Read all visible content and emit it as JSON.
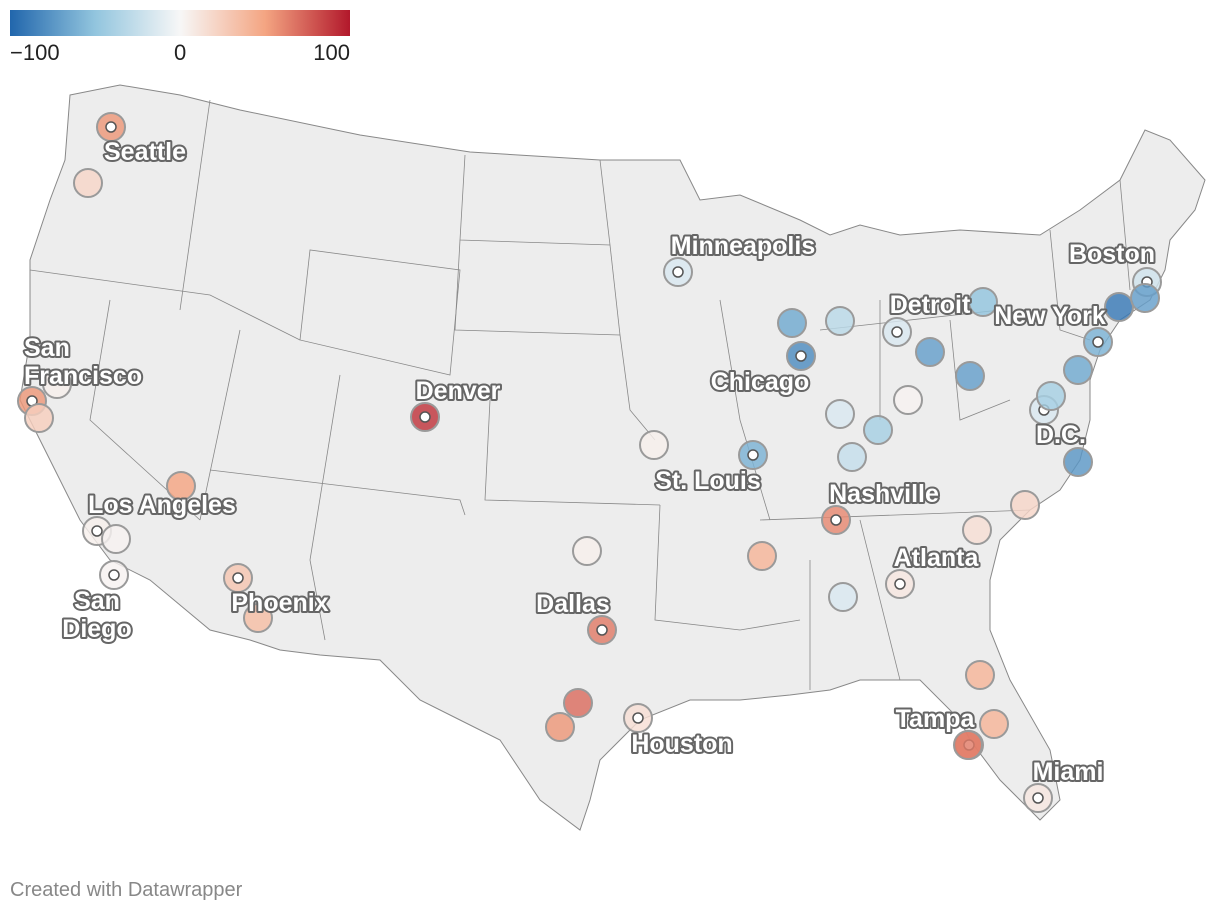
{
  "legend": {
    "min_label": "−100",
    "mid_label": "0",
    "max_label": "100",
    "colors": [
      "#2166ac",
      "#92c5de",
      "#f7f7f7",
      "#f4a582",
      "#b2182b"
    ]
  },
  "footer": {
    "credit": "Created with Datawrapper"
  },
  "map_style": {
    "land": "#ededed",
    "border": "#888888",
    "symbol_stroke": "#9a9a9a"
  },
  "cities": [
    {
      "name": "Seattle",
      "value": 55,
      "labeled": true
    },
    {
      "name": "Minneapolis",
      "value": -15,
      "labeled": true
    },
    {
      "name": "Boston",
      "value": -20,
      "labeled": true
    },
    {
      "name": "Detroit",
      "value": -15,
      "labeled": true
    },
    {
      "name": "New York",
      "value": -60,
      "labeled": true
    },
    {
      "name": "San Francisco",
      "value": 55,
      "labeled": true
    },
    {
      "name": "Denver",
      "value": 90,
      "labeled": true
    },
    {
      "name": "Chicago",
      "value": -80,
      "labeled": true
    },
    {
      "name": "D.C.",
      "value": -15,
      "labeled": true
    },
    {
      "name": "St. Louis",
      "value": -60,
      "labeled": true
    },
    {
      "name": "Los Angeles",
      "value": 5,
      "labeled": true
    },
    {
      "name": "Nashville",
      "value": 60,
      "labeled": true
    },
    {
      "name": "Atlanta",
      "value": 10,
      "labeled": true
    },
    {
      "name": "San Diego",
      "value": 3,
      "labeled": true
    },
    {
      "name": "Phoenix",
      "value": 30,
      "labeled": true
    },
    {
      "name": "Dallas",
      "value": 65,
      "labeled": true
    },
    {
      "name": "Houston",
      "value": 15,
      "labeled": true
    },
    {
      "name": "Tampa",
      "value": 60,
      "labeled": true
    },
    {
      "name": "Miami",
      "value": 10,
      "labeled": true
    },
    {
      "name": "",
      "value": 20,
      "labeled": false
    },
    {
      "name": "",
      "value": 5,
      "labeled": false
    },
    {
      "name": "",
      "value": 25,
      "labeled": false
    },
    {
      "name": "",
      "value": 50,
      "labeled": false
    },
    {
      "name": "",
      "value": 3,
      "labeled": false
    },
    {
      "name": "",
      "value": 35,
      "labeled": false
    },
    {
      "name": "",
      "value": 5,
      "labeled": false
    },
    {
      "name": "",
      "value": 40,
      "labeled": false
    },
    {
      "name": "",
      "value": -65,
      "labeled": false
    },
    {
      "name": "",
      "value": -30,
      "labeled": false
    },
    {
      "name": "",
      "value": -70,
      "labeled": false
    },
    {
      "name": "",
      "value": -50,
      "labeled": false
    },
    {
      "name": "",
      "value": 3,
      "labeled": false
    },
    {
      "name": "",
      "value": -15,
      "labeled": false
    },
    {
      "name": "",
      "value": -40,
      "labeled": false
    },
    {
      "name": "",
      "value": -25,
      "labeled": false
    },
    {
      "name": "",
      "value": -70,
      "labeled": false
    },
    {
      "name": "",
      "value": -90,
      "labeled": false
    },
    {
      "name": "",
      "value": -70,
      "labeled": false
    },
    {
      "name": "",
      "value": -65,
      "labeled": false
    },
    {
      "name": "",
      "value": -40,
      "labeled": false
    },
    {
      "name": "",
      "value": -75,
      "labeled": false
    },
    {
      "name": "",
      "value": 20,
      "labeled": false
    },
    {
      "name": "",
      "value": 15,
      "labeled": false
    },
    {
      "name": "",
      "value": 40,
      "labeled": false
    },
    {
      "name": "",
      "value": -15,
      "labeled": false
    },
    {
      "name": "",
      "value": 5,
      "labeled": false
    },
    {
      "name": "",
      "value": 40,
      "labeled": false
    },
    {
      "name": "",
      "value": 55,
      "labeled": false
    },
    {
      "name": "",
      "value": 70,
      "labeled": false
    },
    {
      "name": "",
      "value": 65,
      "labeled": false
    }
  ]
}
